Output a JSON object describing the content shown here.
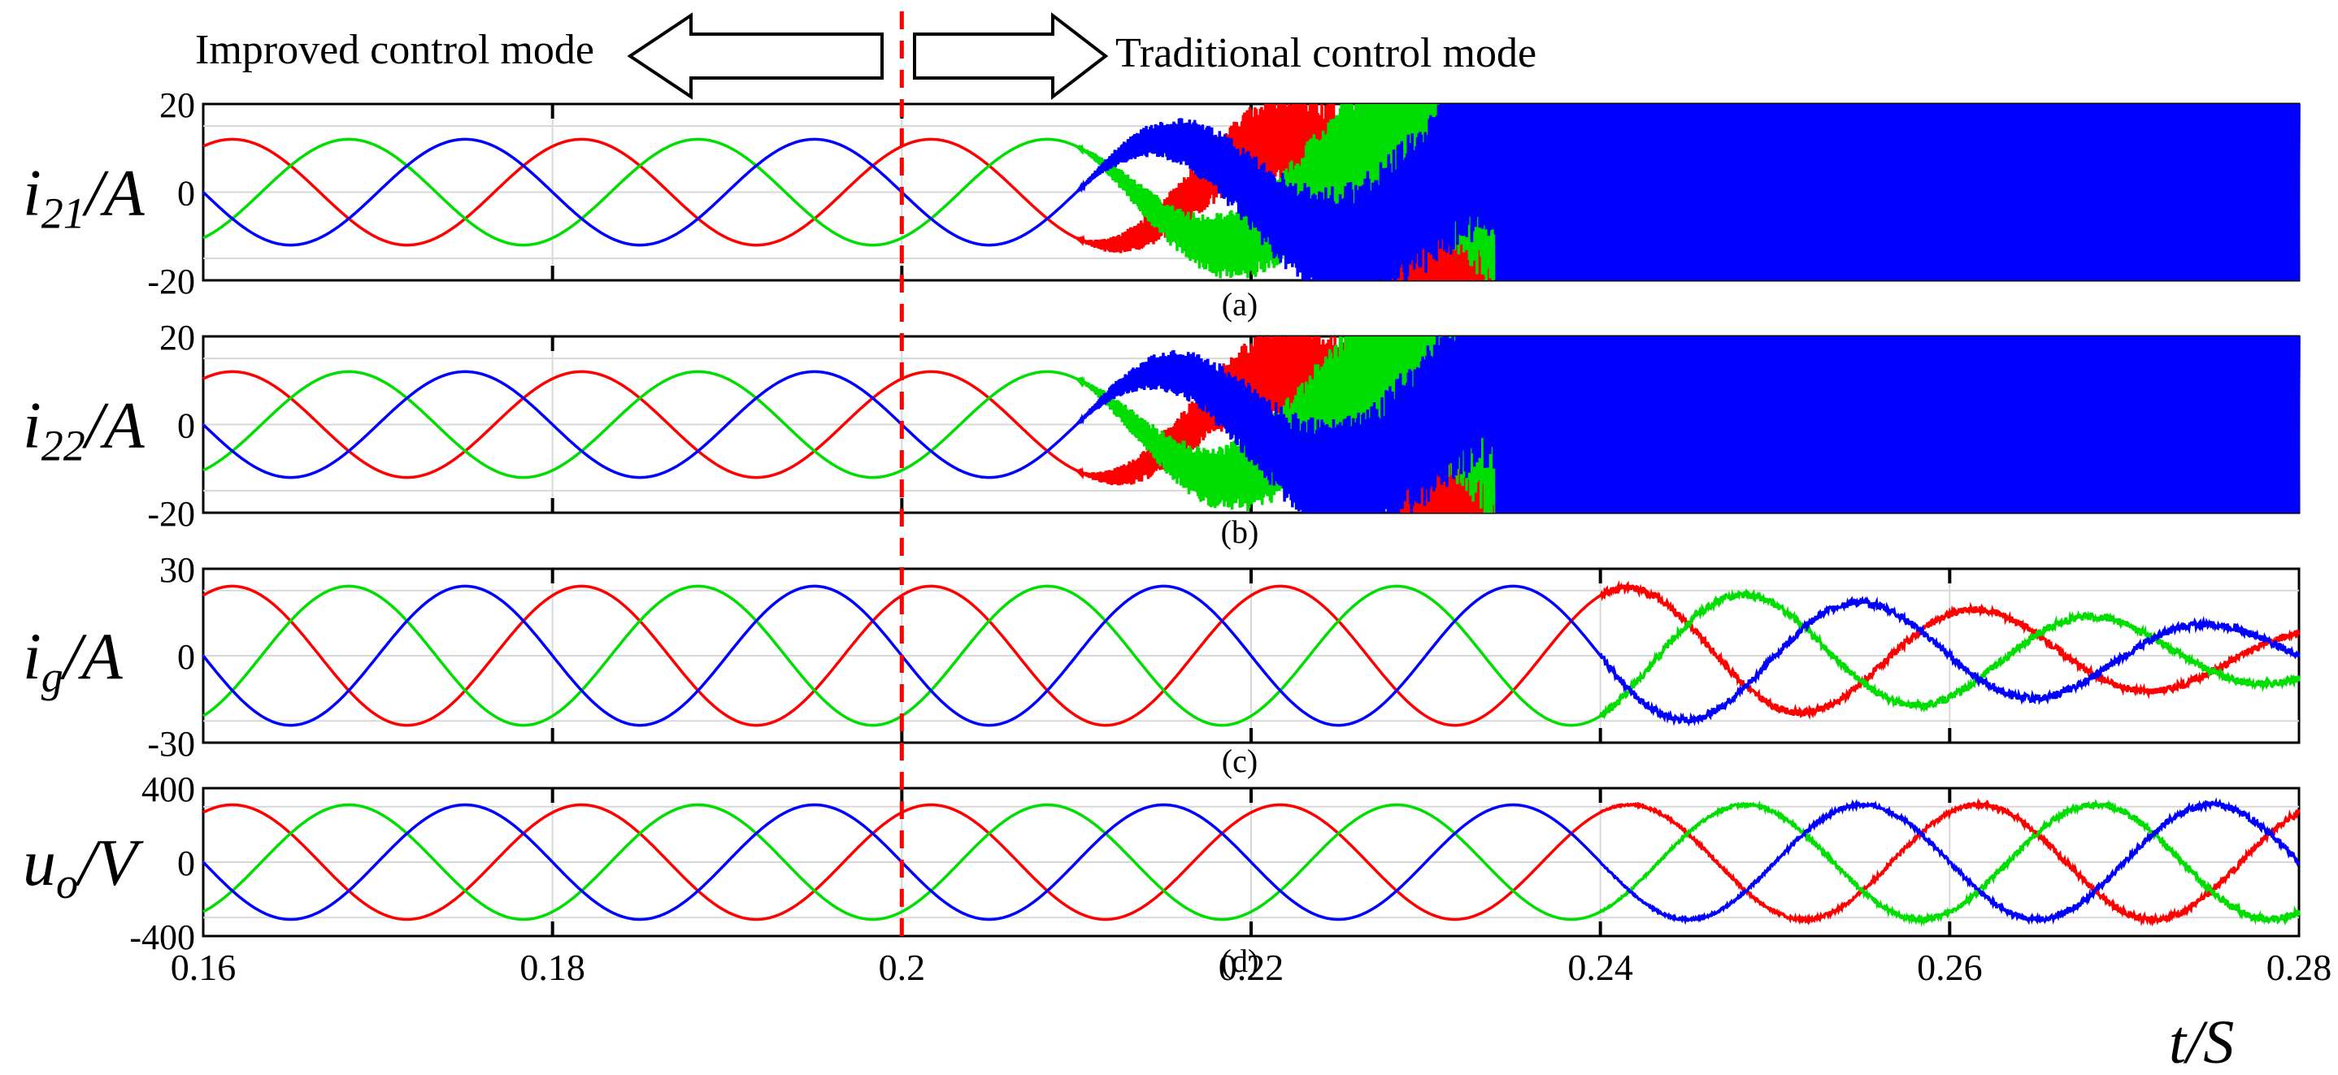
{
  "header": {
    "left_mode": "Improved control mode",
    "right_mode": "Traditional control mode"
  },
  "x_axis_label": "t/S",
  "colors": {
    "phase_a": "#ff0000",
    "phase_b": "#00dd00",
    "phase_c": "#0000ff",
    "marker": "#ff0000"
  },
  "chart_data": [
    {
      "type": "line",
      "caption": "(a)",
      "ylabel_main": "i",
      "ylabel_sub": "21",
      "ylabel_unit": "/A",
      "xlim": [
        0.16,
        0.28
      ],
      "ylim": [
        -20,
        20
      ],
      "yticks": [
        "20",
        "0",
        "-20"
      ],
      "xticks": [],
      "grid": true,
      "period": 0.02,
      "amplitude_stable": 12,
      "instability_onset": 0.21,
      "saturation_time": 0.234,
      "saturation_level": 20,
      "series": [
        {
          "phase_offset_deg": 60
        },
        {
          "phase_offset_deg": -60
        },
        {
          "phase_offset_deg": 180
        }
      ]
    },
    {
      "type": "line",
      "caption": "(b)",
      "ylabel_main": "i",
      "ylabel_sub": "22",
      "ylabel_unit": "/A",
      "xlim": [
        0.16,
        0.28
      ],
      "ylim": [
        -20,
        20
      ],
      "yticks": [
        "20",
        "0",
        "-20"
      ],
      "xticks": [],
      "grid": true,
      "period": 0.02,
      "amplitude_stable": 12,
      "instability_onset": 0.21,
      "saturation_time": 0.234,
      "saturation_level": 20,
      "series": [
        {
          "phase_offset_deg": 60
        },
        {
          "phase_offset_deg": -60
        },
        {
          "phase_offset_deg": 180
        }
      ]
    },
    {
      "type": "line",
      "caption": "(c)",
      "ylabel_main": "i",
      "ylabel_sub": "g",
      "ylabel_unit": "/A",
      "xlim": [
        0.16,
        0.28
      ],
      "ylim": [
        -30,
        30
      ],
      "yticks": [
        "30",
        "0",
        "-30"
      ],
      "xticks": [],
      "grid": true,
      "period": 0.02,
      "amplitude_stable": 24,
      "amplitude_end": 9,
      "decay_start": 0.24,
      "series": [
        {
          "phase_offset_deg": 60
        },
        {
          "phase_offset_deg": -60
        },
        {
          "phase_offset_deg": 180
        }
      ]
    },
    {
      "type": "line",
      "caption": "(d)",
      "ylabel_main": "u",
      "ylabel_sub": "o",
      "ylabel_unit": "/V",
      "xlim": [
        0.16,
        0.28
      ],
      "ylim": [
        -400,
        400
      ],
      "yticks": [
        "400",
        "0",
        "-400"
      ],
      "xticks": [
        "0.16",
        "0.18",
        "0.2",
        "0.22",
        "0.24",
        "0.26",
        "0.28"
      ],
      "grid": true,
      "period": 0.02,
      "amplitude_stable": 310,
      "ripple_start": 0.24,
      "ripple_amp": 30,
      "series": [
        {
          "phase_offset_deg": 60
        },
        {
          "phase_offset_deg": -60
        },
        {
          "phase_offset_deg": 180
        }
      ]
    }
  ],
  "switch_time": 0.2
}
